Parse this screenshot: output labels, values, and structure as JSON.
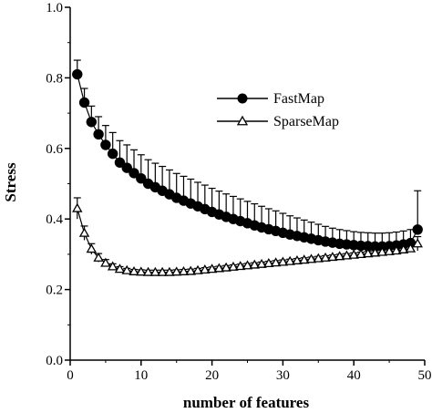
{
  "chart_data": {
    "type": "line",
    "title": "",
    "xlabel": "number of features",
    "ylabel": "Stress",
    "xlim": [
      0,
      50
    ],
    "ylim": [
      0.0,
      1.0
    ],
    "xticks": [
      "0",
      "10",
      "20",
      "30",
      "40",
      "50"
    ],
    "yticks": [
      "0.0",
      "0.2",
      "0.4",
      "0.6",
      "0.8",
      "1.0"
    ],
    "grid": false,
    "legend": "center-right",
    "x": [
      1,
      2,
      3,
      4,
      5,
      6,
      7,
      8,
      9,
      10,
      11,
      12,
      13,
      14,
      15,
      16,
      17,
      18,
      19,
      20,
      21,
      22,
      23,
      24,
      25,
      26,
      27,
      28,
      29,
      30,
      31,
      32,
      33,
      34,
      35,
      36,
      37,
      38,
      39,
      40,
      41,
      42,
      43,
      44,
      45,
      46,
      47,
      48,
      49
    ],
    "series": [
      {
        "name": "FastMap",
        "marker": "filled-circle",
        "color": "#000000",
        "values": [
          0.81,
          0.73,
          0.675,
          0.64,
          0.61,
          0.585,
          0.56,
          0.545,
          0.53,
          0.515,
          0.5,
          0.49,
          0.48,
          0.47,
          0.46,
          0.452,
          0.444,
          0.436,
          0.428,
          0.42,
          0.413,
          0.406,
          0.4,
          0.394,
          0.388,
          0.382,
          0.376,
          0.371,
          0.366,
          0.361,
          0.356,
          0.352,
          0.348,
          0.344,
          0.34,
          0.336,
          0.333,
          0.33,
          0.328,
          0.326,
          0.324,
          0.323,
          0.322,
          0.322,
          0.323,
          0.325,
          0.328,
          0.332,
          0.37
        ],
        "errors": [
          0.04,
          0.04,
          0.045,
          0.05,
          0.055,
          0.06,
          0.062,
          0.065,
          0.066,
          0.067,
          0.068,
          0.068,
          0.069,
          0.069,
          0.069,
          0.069,
          0.069,
          0.068,
          0.068,
          0.067,
          0.066,
          0.065,
          0.064,
          0.063,
          0.062,
          0.061,
          0.06,
          0.058,
          0.057,
          0.055,
          0.053,
          0.051,
          0.049,
          0.047,
          0.045,
          0.043,
          0.041,
          0.04,
          0.039,
          0.038,
          0.038,
          0.038,
          0.038,
          0.038,
          0.038,
          0.038,
          0.038,
          0.038,
          0.11
        ]
      },
      {
        "name": "SparseMap",
        "marker": "open-triangle",
        "color": "#000000",
        "values": [
          0.43,
          0.36,
          0.315,
          0.29,
          0.275,
          0.265,
          0.258,
          0.254,
          0.251,
          0.25,
          0.249,
          0.249,
          0.249,
          0.249,
          0.25,
          0.251,
          0.252,
          0.254,
          0.256,
          0.258,
          0.26,
          0.262,
          0.264,
          0.266,
          0.268,
          0.27,
          0.272,
          0.274,
          0.276,
          0.278,
          0.28,
          0.282,
          0.284,
          0.286,
          0.288,
          0.29,
          0.292,
          0.294,
          0.296,
          0.298,
          0.3,
          0.302,
          0.304,
          0.306,
          0.308,
          0.31,
          0.313,
          0.316,
          0.33
        ],
        "errors": [
          0.03,
          0.02,
          0.015,
          0.012,
          0.01,
          0.008,
          0.007,
          0.006,
          0.006,
          0.006,
          0.006,
          0.006,
          0.006,
          0.006,
          0.006,
          0.006,
          0.006,
          0.006,
          0.006,
          0.006,
          0.006,
          0.006,
          0.006,
          0.006,
          0.006,
          0.006,
          0.006,
          0.006,
          0.006,
          0.006,
          0.006,
          0.006,
          0.006,
          0.006,
          0.006,
          0.006,
          0.006,
          0.006,
          0.006,
          0.006,
          0.006,
          0.006,
          0.006,
          0.006,
          0.006,
          0.006,
          0.006,
          0.006,
          0.02
        ]
      }
    ]
  }
}
